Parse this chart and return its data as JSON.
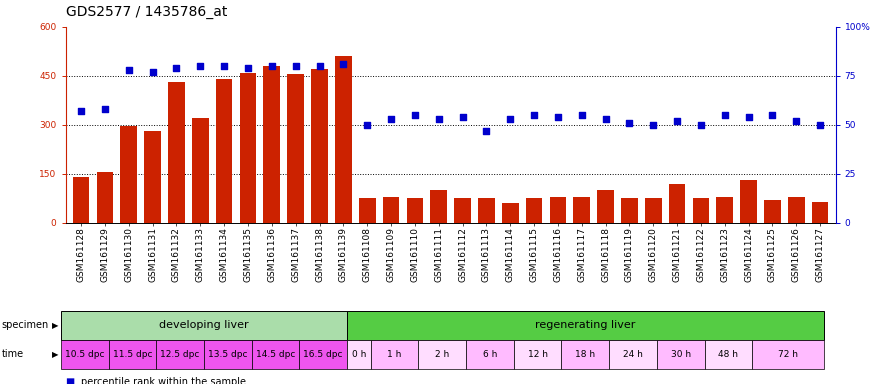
{
  "title": "GDS2577 / 1435786_at",
  "samples": [
    "GSM161128",
    "GSM161129",
    "GSM161130",
    "GSM161131",
    "GSM161132",
    "GSM161133",
    "GSM161134",
    "GSM161135",
    "GSM161136",
    "GSM161137",
    "GSM161138",
    "GSM161139",
    "GSM161108",
    "GSM161109",
    "GSM161110",
    "GSM161111",
    "GSM161112",
    "GSM161113",
    "GSM161114",
    "GSM161115",
    "GSM161116",
    "GSM161117",
    "GSM161118",
    "GSM161119",
    "GSM161120",
    "GSM161121",
    "GSM161122",
    "GSM161123",
    "GSM161124",
    "GSM161125",
    "GSM161126",
    "GSM161127"
  ],
  "counts": [
    140,
    155,
    295,
    280,
    430,
    320,
    440,
    460,
    480,
    455,
    470,
    510,
    75,
    80,
    75,
    100,
    75,
    75,
    60,
    75,
    80,
    80,
    100,
    75,
    75,
    120,
    75,
    80,
    130,
    70,
    80,
    65
  ],
  "percentiles": [
    57,
    58,
    78,
    77,
    79,
    80,
    80,
    79,
    80,
    80,
    80,
    81,
    50,
    53,
    55,
    53,
    54,
    47,
    53,
    55,
    54,
    55,
    53,
    51,
    50,
    52,
    50,
    55,
    54,
    55,
    52,
    50
  ],
  "specimen_groups": [
    {
      "label": "developing liver",
      "start": 0,
      "end": 12,
      "color": "#AADDAA"
    },
    {
      "label": "regenerating liver",
      "start": 12,
      "end": 32,
      "color": "#55CC44"
    }
  ],
  "time_groups": [
    {
      "label": "10.5 dpc",
      "start": 0,
      "end": 2,
      "color": "#EE55EE"
    },
    {
      "label": "11.5 dpc",
      "start": 2,
      "end": 4,
      "color": "#EE55EE"
    },
    {
      "label": "12.5 dpc",
      "start": 4,
      "end": 6,
      "color": "#EE55EE"
    },
    {
      "label": "13.5 dpc",
      "start": 6,
      "end": 8,
      "color": "#EE55EE"
    },
    {
      "label": "14.5 dpc",
      "start": 8,
      "end": 10,
      "color": "#EE55EE"
    },
    {
      "label": "16.5 dpc",
      "start": 10,
      "end": 12,
      "color": "#EE55EE"
    },
    {
      "label": "0 h",
      "start": 12,
      "end": 13,
      "color": "#FFDDFF"
    },
    {
      "label": "1 h",
      "start": 13,
      "end": 15,
      "color": "#FFBBFF"
    },
    {
      "label": "2 h",
      "start": 15,
      "end": 17,
      "color": "#FFDDFF"
    },
    {
      "label": "6 h",
      "start": 17,
      "end": 19,
      "color": "#FFBBFF"
    },
    {
      "label": "12 h",
      "start": 19,
      "end": 21,
      "color": "#FFDDFF"
    },
    {
      "label": "18 h",
      "start": 21,
      "end": 23,
      "color": "#FFBBFF"
    },
    {
      "label": "24 h",
      "start": 23,
      "end": 25,
      "color": "#FFDDFF"
    },
    {
      "label": "30 h",
      "start": 25,
      "end": 27,
      "color": "#FFBBFF"
    },
    {
      "label": "48 h",
      "start": 27,
      "end": 29,
      "color": "#FFDDFF"
    },
    {
      "label": "72 h",
      "start": 29,
      "end": 32,
      "color": "#FFBBFF"
    }
  ],
  "ylim_left": [
    0,
    600
  ],
  "ylim_right": [
    0,
    100
  ],
  "yticks_left": [
    0,
    150,
    300,
    450,
    600
  ],
  "yticks_right": [
    0,
    25,
    50,
    75,
    100
  ],
  "bar_color": "#CC2200",
  "dot_color": "#0000CC",
  "bar_width": 0.7,
  "title_fontsize": 10,
  "tick_fontsize": 6.5,
  "label_fontsize": 8,
  "xtick_bg_color": "#CCCCCC"
}
